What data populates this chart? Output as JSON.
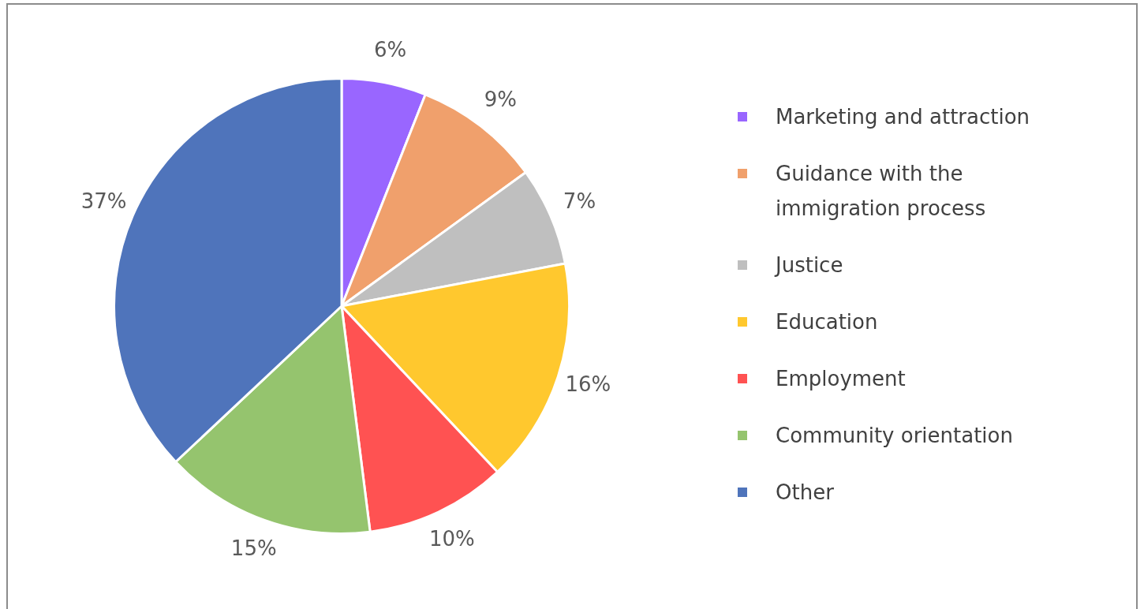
{
  "chart_data": {
    "type": "pie",
    "categories": [
      "Marketing and attraction",
      "Guidance with the immigration process",
      "Justice",
      "Education",
      "Employment",
      "Community orientation",
      "Other"
    ],
    "values": [
      6,
      9,
      7,
      16,
      10,
      15,
      37
    ],
    "value_labels": [
      "6%",
      "9%",
      "7%",
      "16%",
      "10%",
      "15%",
      "37%"
    ],
    "colors": [
      "#9966ff",
      "#f0a06c",
      "#bfbfbf",
      "#ffc82e",
      "#ff5252",
      "#95c46e",
      "#4f74bb"
    ],
    "legend": "right"
  }
}
